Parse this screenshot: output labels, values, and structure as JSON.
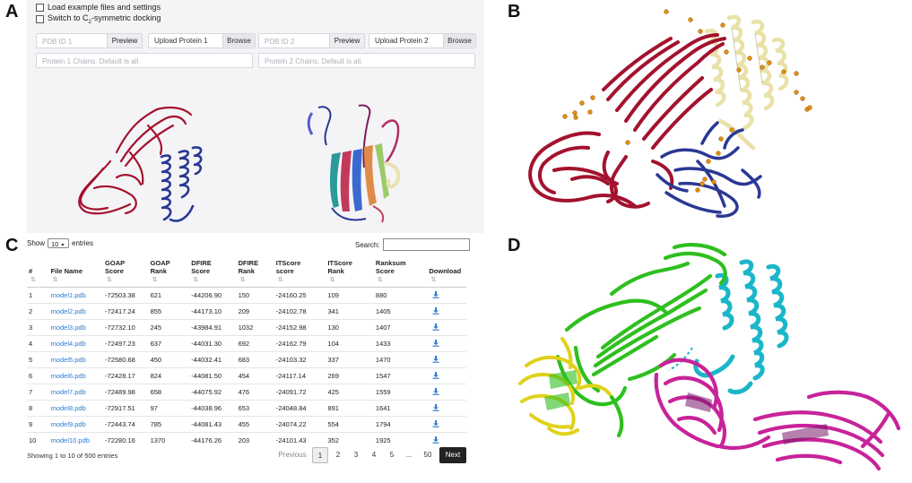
{
  "labels": {
    "a": "A",
    "b": "B",
    "c": "C",
    "d": "D"
  },
  "panelA": {
    "load_example": "Load example files and settings",
    "switch_c2_prefix": "Switch to C",
    "switch_c2_sub": "2",
    "switch_c2_suffix": "-symmetric docking",
    "pdb1_placeholder": "PDB ID 1",
    "pdb2_placeholder": "PDB ID 2",
    "preview": "Preview",
    "upload1": "Upload Protein 1",
    "upload2": "Upload Protein 2",
    "browse": "Browse",
    "chains1_placeholder": "Protein 1 Chains. Default is all.",
    "chains2_placeholder": "Protein 2 Chains. Default is all."
  },
  "table": {
    "show": "Show",
    "entries_value": "10",
    "entries": "entries",
    "search": "Search:",
    "headers": [
      [
        "#",
        ""
      ],
      [
        "File Name",
        ""
      ],
      [
        "GOAP",
        "Score"
      ],
      [
        "GOAP",
        "Rank"
      ],
      [
        "DFIRE",
        "Score"
      ],
      [
        "DFIRE",
        "Rank"
      ],
      [
        "ITScore",
        "score"
      ],
      [
        "ITScore",
        "Rank"
      ],
      [
        "Ranksum",
        "Score"
      ],
      [
        "Download",
        ""
      ]
    ],
    "rows": [
      [
        "1",
        "model1.pdb",
        "-72503.38",
        "621",
        "-44206.90",
        "150",
        "-24160.25",
        "109",
        "880"
      ],
      [
        "2",
        "model2.pdb",
        "-72417.24",
        "855",
        "-44173.10",
        "209",
        "-24102.78",
        "341",
        "1405"
      ],
      [
        "3",
        "model3.pdb",
        "-72732.10",
        "245",
        "-43984.91",
        "1032",
        "-24152.98",
        "130",
        "1407"
      ],
      [
        "4",
        "model4.pdb",
        "-72497.23",
        "637",
        "-44031.30",
        "692",
        "-24162.79",
        "104",
        "1433"
      ],
      [
        "5",
        "model5.pdb",
        "-72580.68",
        "450",
        "-44032.41",
        "683",
        "-24103.32",
        "337",
        "1470"
      ],
      [
        "6",
        "model6.pdb",
        "-72428.17",
        "824",
        "-44081.50",
        "454",
        "-24117.14",
        "269",
        "1547"
      ],
      [
        "7",
        "model7.pdb",
        "-72489.98",
        "658",
        "-44075.92",
        "476",
        "-24091.72",
        "425",
        "1559"
      ],
      [
        "8",
        "model8.pdb",
        "-72917.51",
        "97",
        "-44038.96",
        "653",
        "-24048.84",
        "891",
        "1641"
      ],
      [
        "9",
        "model9.pdb",
        "-72443.74",
        "785",
        "-44081.43",
        "455",
        "-24074.22",
        "554",
        "1794"
      ],
      [
        "10",
        "model10.pdb",
        "-72280.16",
        "1370",
        "-44176.26",
        "203",
        "-24101.43",
        "352",
        "1925"
      ]
    ],
    "info": "Showing 1 to 10 of 500 entries",
    "previous": "Previous",
    "pages": [
      "1",
      "2",
      "3",
      "4",
      "5",
      "...",
      "50"
    ],
    "next": "Next"
  },
  "colors": {
    "crimson": "#a3122e",
    "navy": "#2a3894",
    "cream": "#f2ecbc",
    "orange": "#e8900f",
    "green": "#2fbf1f",
    "cyan": "#1ab6c9",
    "magenta": "#c8239a",
    "yellow": "#e0d21a",
    "link": "#2a7bd6"
  }
}
